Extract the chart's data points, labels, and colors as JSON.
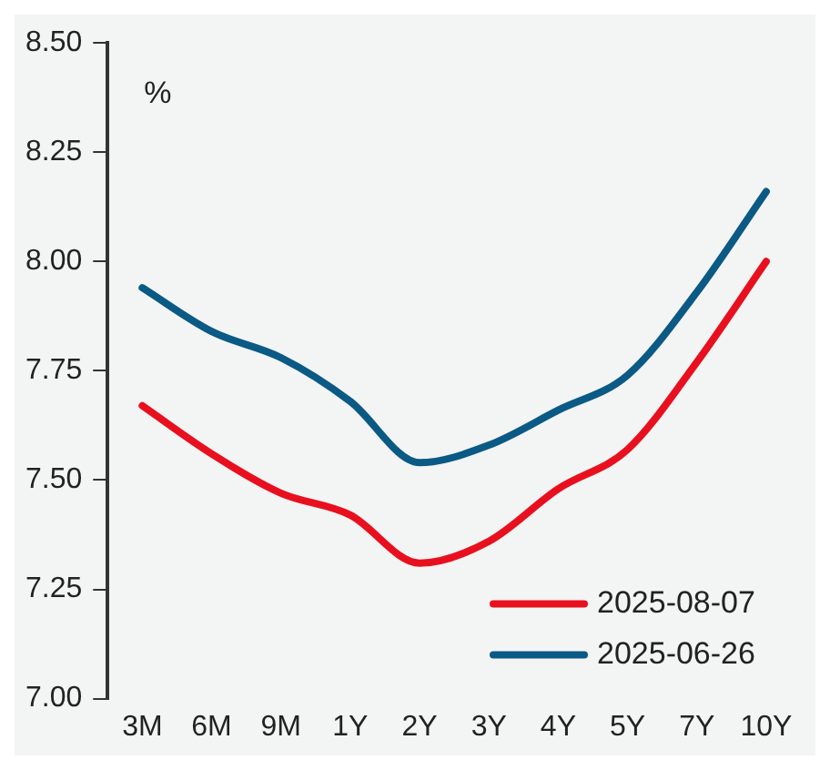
{
  "chart_data": {
    "type": "line",
    "annotations": [
      "%"
    ],
    "categories": [
      "3M",
      "6M",
      "9M",
      "1Y",
      "2Y",
      "3Y",
      "4Y",
      "5Y",
      "7Y",
      "10Y"
    ],
    "series": [
      {
        "name": "2025-08-07",
        "color": "#e8101f",
        "values": [
          7.67,
          7.56,
          7.47,
          7.42,
          7.31,
          7.36,
          7.48,
          7.57,
          7.77,
          8.0
        ]
      },
      {
        "name": "2025-06-26",
        "color": "#0a5a85",
        "values": [
          7.94,
          7.84,
          7.78,
          7.68,
          7.54,
          7.58,
          7.66,
          7.74,
          7.93,
          8.16
        ]
      }
    ],
    "ylim": [
      7.0,
      8.5
    ],
    "yticks": [
      {
        "value": 7.0,
        "label": "7.00"
      },
      {
        "value": 7.25,
        "label": "7.25"
      },
      {
        "value": 7.5,
        "label": "7.50"
      },
      {
        "value": 7.75,
        "label": "7.75"
      },
      {
        "value": 8.0,
        "label": "8.00"
      },
      {
        "value": 8.25,
        "label": "8.25"
      },
      {
        "value": 8.5,
        "label": "8.50"
      }
    ],
    "grid": false,
    "legend": "bottom right",
    "marker": "none",
    "line_style": "solid"
  }
}
